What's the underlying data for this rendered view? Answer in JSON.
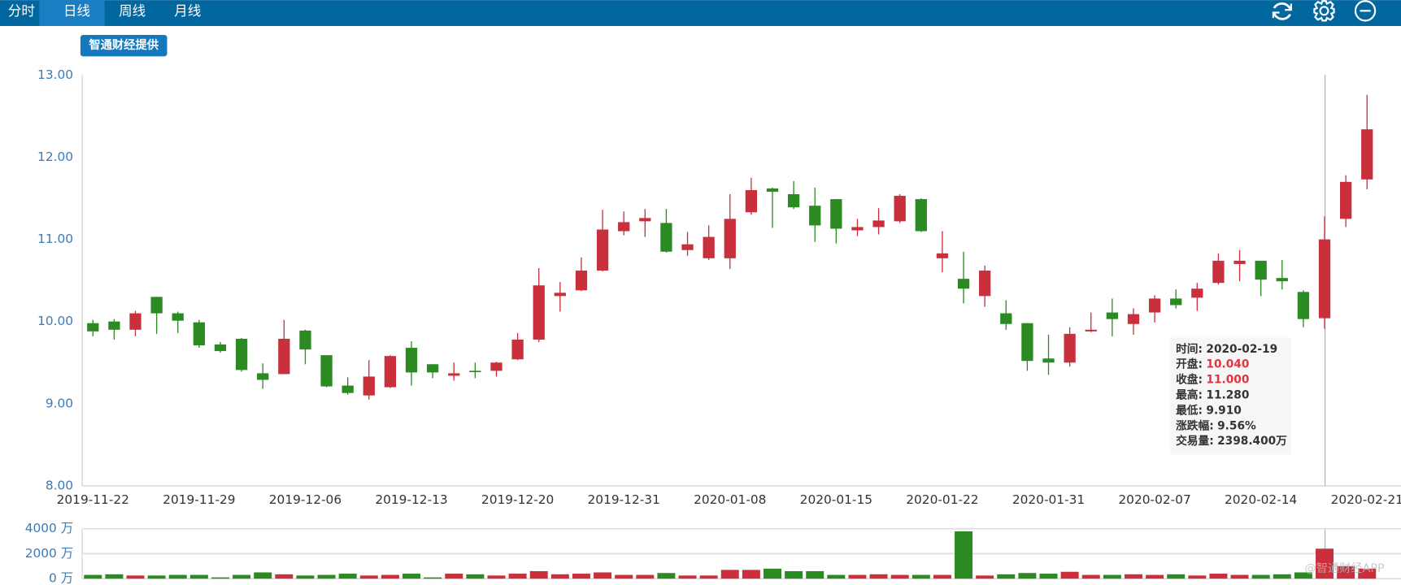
{
  "tabs": [
    "分时",
    "日线",
    "周线",
    "月线"
  ],
  "badge": "智通财经提供",
  "watermark": "@智通财经APP",
  "tooltip": [
    {
      "label": "时间:",
      "value": "2020-02-19"
    },
    {
      "label": "开盘:",
      "value": "10.040"
    },
    {
      "label": "收盘:",
      "value": "11.000"
    },
    {
      "label": "最高:",
      "value": "11.280"
    },
    {
      "label": "最低:",
      "value": "9.910"
    },
    {
      "label": "涨跌幅:",
      "value": "9.56%"
    },
    {
      "label": "交易量:",
      "value": "2398.400万"
    }
  ],
  "chart_data": [
    {
      "type": "candlestick",
      "categories": [
        "2019-11-22",
        null,
        null,
        null,
        null,
        "2019-11-29",
        null,
        null,
        null,
        null,
        "2019-12-06",
        null,
        null,
        null,
        null,
        "2019-12-13",
        null,
        null,
        null,
        null,
        "2019-12-20",
        null,
        null,
        null,
        null,
        "2019-12-31",
        null,
        null,
        null,
        null,
        "2020-01-08",
        null,
        null,
        null,
        null,
        "2020-01-15",
        null,
        null,
        null,
        null,
        "2020-01-22",
        null,
        null,
        null,
        null,
        "2020-01-31",
        null,
        null,
        null,
        null,
        "2020-02-07",
        null,
        null,
        null,
        null,
        "2020-02-14",
        null,
        null,
        null,
        null,
        "2020-02-21"
      ],
      "open": [
        9.98,
        10.0,
        9.9,
        10.3,
        10.1,
        9.99,
        9.72,
        9.79,
        9.37,
        9.36,
        9.89,
        9.59,
        9.22,
        9.1,
        9.2,
        9.68,
        9.48,
        9.34,
        9.4,
        9.4,
        9.54,
        9.78,
        10.31,
        10.38,
        10.62,
        11.1,
        11.22,
        11.2,
        10.87,
        10.77,
        10.77,
        11.33,
        11.62,
        11.55,
        11.41,
        11.49,
        11.11,
        11.15,
        11.22,
        11.49,
        10.77,
        10.52,
        10.31,
        10.1,
        9.98,
        9.55,
        9.5,
        9.88,
        10.11,
        9.97,
        10.11,
        10.28,
        10.29,
        10.47,
        10.7,
        10.74,
        10.53,
        10.36,
        10.04,
        11.25,
        11.73
      ],
      "close": [
        9.88,
        9.9,
        10.1,
        10.1,
        10.01,
        9.71,
        9.64,
        9.41,
        9.29,
        9.79,
        9.66,
        9.21,
        9.13,
        9.33,
        9.58,
        9.38,
        9.38,
        9.37,
        9.39,
        9.5,
        9.78,
        10.44,
        10.35,
        10.62,
        11.12,
        11.21,
        11.26,
        10.85,
        10.94,
        11.03,
        11.25,
        11.6,
        11.58,
        11.39,
        11.17,
        11.13,
        11.15,
        11.23,
        11.53,
        11.1,
        10.83,
        10.4,
        10.62,
        9.97,
        9.52,
        9.5,
        9.85,
        9.9,
        10.03,
        10.09,
        10.28,
        10.2,
        10.4,
        10.74,
        10.74,
        10.51,
        10.49,
        10.03,
        11.0,
        11.7,
        12.34
      ],
      "high": [
        10.02,
        10.03,
        10.13,
        10.3,
        10.12,
        10.02,
        9.75,
        9.8,
        9.49,
        10.02,
        9.9,
        9.59,
        9.32,
        9.53,
        9.59,
        9.76,
        9.48,
        9.5,
        9.5,
        9.51,
        9.86,
        10.65,
        10.48,
        10.78,
        11.36,
        11.34,
        11.37,
        11.37,
        11.09,
        11.17,
        11.55,
        11.75,
        11.63,
        11.71,
        11.63,
        11.49,
        11.25,
        11.38,
        11.55,
        11.5,
        11.1,
        10.85,
        10.68,
        10.26,
        9.98,
        9.84,
        9.93,
        10.11,
        10.28,
        10.16,
        10.32,
        10.39,
        10.47,
        10.83,
        10.87,
        10.74,
        10.75,
        10.38,
        11.28,
        11.78,
        12.76
      ],
      "low": [
        9.82,
        9.78,
        9.82,
        9.85,
        9.86,
        9.68,
        9.62,
        9.39,
        9.18,
        9.36,
        9.48,
        9.2,
        9.11,
        9.05,
        9.19,
        9.22,
        9.31,
        9.28,
        9.31,
        9.33,
        9.53,
        9.75,
        10.12,
        10.37,
        10.61,
        11.05,
        11.03,
        10.84,
        10.8,
        10.75,
        10.64,
        11.3,
        11.14,
        11.37,
        10.97,
        10.95,
        11.04,
        11.06,
        11.2,
        11.09,
        10.6,
        10.22,
        10.18,
        9.9,
        9.4,
        9.35,
        9.45,
        9.87,
        9.82,
        9.84,
        9.99,
        10.16,
        10.13,
        10.45,
        10.49,
        10.31,
        10.39,
        9.93,
        9.91,
        11.15,
        11.61
      ],
      "up_color": "#c9303c",
      "down_color": "#2b8a22",
      "ylim": [
        8,
        13
      ],
      "yticks": [
        {
          "value": 8,
          "label": "8.00"
        },
        {
          "value": 9,
          "label": "9.00"
        },
        {
          "value": 10,
          "label": "10.00"
        },
        {
          "value": 11,
          "label": "11.00"
        },
        {
          "value": 12,
          "label": "12.00"
        },
        {
          "value": 13,
          "label": "13.00"
        }
      ]
    },
    {
      "type": "bar",
      "values": [
        300,
        350,
        250,
        250,
        300,
        300,
        100,
        300,
        500,
        350,
        250,
        300,
        400,
        250,
        300,
        400,
        100,
        400,
        350,
        250,
        400,
        600,
        350,
        400,
        500,
        300,
        300,
        450,
        250,
        250,
        700,
        700,
        800,
        600,
        600,
        300,
        300,
        350,
        300,
        300,
        300,
        3780,
        250,
        350,
        450,
        400,
        550,
        300,
        300,
        350,
        300,
        350,
        250,
        400,
        300,
        300,
        350,
        500,
        2398.4,
        1000,
        800
      ],
      "ylim": [
        0,
        4000
      ],
      "yticks": [
        {
          "value": 0,
          "label": "0 万"
        },
        {
          "value": 2000,
          "label": "2000 万"
        },
        {
          "value": 4000,
          "label": "4000 万"
        }
      ],
      "grid": true
    }
  ]
}
